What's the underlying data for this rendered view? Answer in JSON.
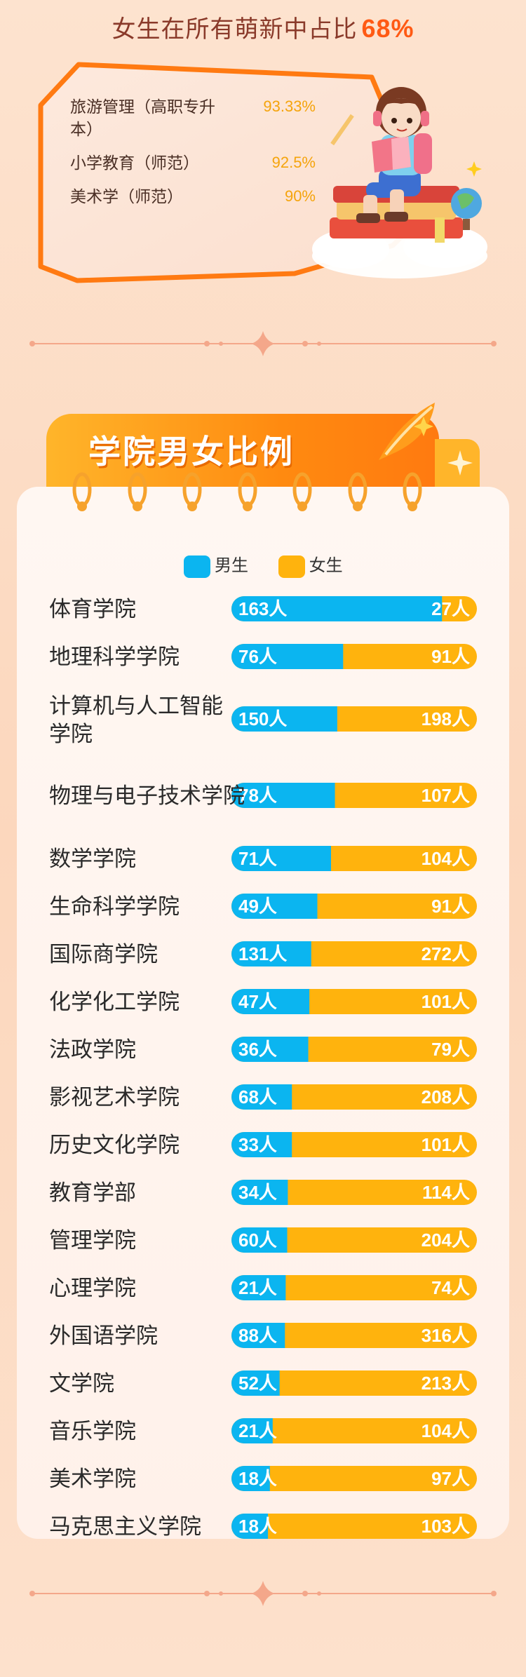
{
  "top_summary": {
    "title": "女生在所有萌新中占比",
    "percentage": "68%",
    "majors": [
      {
        "name": "旅游管理（高职专升本）",
        "value": "93.33%"
      },
      {
        "name": "小学教育（师范）",
        "value": "92.5%"
      },
      {
        "name": "美术学（师范）",
        "value": "90%"
      }
    ]
  },
  "section": {
    "title": "学院男女比例"
  },
  "colors": {
    "male": "#0bb5f0",
    "female": "#ffb30d",
    "accent": "#ff6a10"
  },
  "chart_data": {
    "type": "bar",
    "stacked": true,
    "orientation": "horizontal",
    "legend": "top",
    "unit": "人",
    "categories": [
      "体育学院",
      "地理科学学院",
      "计算机与人工智能学院",
      "物理与电子技术学院",
      "数学学院",
      "生命科学学院",
      "国际商学院",
      "化学化工学院",
      "法政学院",
      "影视艺术学院",
      "历史文化学院",
      "教育学部",
      "管理学院",
      "心理学院",
      "外国语学院",
      "文学院",
      "音乐学院",
      "美术学院",
      "马克思主义学院"
    ],
    "series": [
      {
        "name": "男生",
        "values": [
          163,
          76,
          150,
          78,
          71,
          49,
          131,
          47,
          36,
          68,
          33,
          34,
          60,
          21,
          88,
          52,
          21,
          18,
          18
        ]
      },
      {
        "name": "女生",
        "values": [
          27,
          91,
          198,
          107,
          104,
          91,
          272,
          101,
          79,
          208,
          101,
          114,
          204,
          74,
          316,
          213,
          104,
          97,
          103
        ]
      }
    ]
  }
}
